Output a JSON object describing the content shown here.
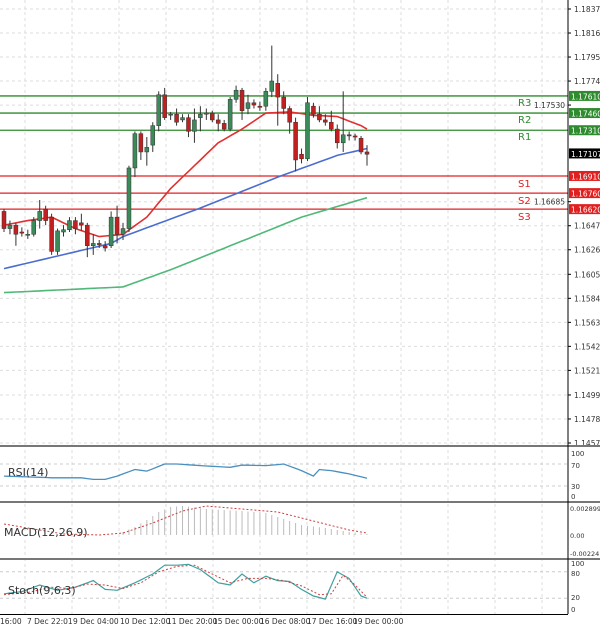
{
  "chart_data": {
    "type": "candlestick",
    "symbol_timeframe_hidden": true,
    "price_axis": {
      "ticks": [
        "1.18370",
        "1.18160",
        "1.17950",
        "1.17740",
        "1.17530",
        "1.16685",
        "1.16475",
        "1.16265",
        "1.16050",
        "1.15840",
        "1.15630",
        "1.15420",
        "1.15210",
        "1.14995",
        "1.14785",
        "1.14575"
      ],
      "range": [
        1.14575,
        1.1837
      ]
    },
    "current_price": {
      "value": "1.17107",
      "color": "#000000"
    },
    "levels": [
      {
        "name": "R3",
        "value": 1.1761,
        "label": "1.17610",
        "color": "#2e8b2e"
      },
      {
        "name": "R2",
        "value": 1.1746,
        "label": "1.17460",
        "color": "#2e8b2e"
      },
      {
        "name": "R1",
        "value": 1.1731,
        "label": "1.17310",
        "color": "#2e8b2e"
      },
      {
        "name": "S1",
        "value": 1.1691,
        "label": "1.16910",
        "color": "#e02020"
      },
      {
        "name": "S2",
        "value": 1.1676,
        "label": "1.16760",
        "color": "#e02020"
      },
      {
        "name": "S3",
        "value": 1.1662,
        "label": "1.16620",
        "color": "#e02020"
      }
    ],
    "time_axis": [
      "16:00",
      "7 Dec 22:01",
      "9 Dec 04:00",
      "10 Dec 12:00",
      "11 Dec 20:00",
      "15 Dec 00:00",
      "16 Dec 08:00",
      "17 Dec 16:00",
      "19 Dec 00:00"
    ],
    "colors": {
      "bull": "#3a8a5a",
      "bear": "#c02020",
      "ma_fast": "#e03030",
      "ma_mid": "#4a6ed0",
      "ma_slow": "#50b878"
    },
    "candles": [
      [
        1.166,
        1.1662,
        1.1642,
        1.1645
      ],
      [
        1.1645,
        1.1652,
        1.164,
        1.1648
      ],
      [
        1.1648,
        1.165,
        1.163,
        1.164
      ],
      [
        1.1642,
        1.1646,
        1.1638,
        1.1641
      ],
      [
        1.164,
        1.1644,
        1.1636,
        1.164
      ],
      [
        1.164,
        1.1655,
        1.1638,
        1.1652
      ],
      [
        1.1652,
        1.167,
        1.1645,
        1.166
      ],
      [
        1.1662,
        1.1665,
        1.1648,
        1.1652
      ],
      [
        1.1655,
        1.1658,
        1.1622,
        1.1625
      ],
      [
        1.1625,
        1.1645,
        1.1622,
        1.1643
      ],
      [
        1.1642,
        1.1648,
        1.1638,
        1.1644
      ],
      [
        1.1644,
        1.1655,
        1.1642,
        1.1652
      ],
      [
        1.1652,
        1.1655,
        1.164,
        1.1645
      ],
      [
        1.165,
        1.1658,
        1.1643,
        1.1648
      ],
      [
        1.1648,
        1.165,
        1.162,
        1.163
      ],
      [
        1.163,
        1.164,
        1.1622,
        1.1632
      ],
      [
        1.1632,
        1.1635,
        1.1628,
        1.1631
      ],
      [
        1.163,
        1.1634,
        1.1625,
        1.1628
      ],
      [
        1.163,
        1.166,
        1.1628,
        1.1655
      ],
      [
        1.1655,
        1.1665,
        1.1632,
        1.164
      ],
      [
        1.164,
        1.165,
        1.1635,
        1.1645
      ],
      [
        1.1645,
        1.17,
        1.1642,
        1.1698
      ],
      [
        1.1698,
        1.173,
        1.169,
        1.1728
      ],
      [
        1.1728,
        1.173,
        1.1705,
        1.1712
      ],
      [
        1.1712,
        1.1725,
        1.17,
        1.1716
      ],
      [
        1.1718,
        1.1738,
        1.1712,
        1.1735
      ],
      [
        1.1735,
        1.1765,
        1.173,
        1.1762
      ],
      [
        1.1762,
        1.1768,
        1.174,
        1.1742
      ],
      [
        1.1745,
        1.1747,
        1.174,
        1.1745
      ],
      [
        1.1745,
        1.175,
        1.1735,
        1.1738
      ],
      [
        1.174,
        1.1745,
        1.1738,
        1.1742
      ],
      [
        1.1742,
        1.1745,
        1.1725,
        1.173
      ],
      [
        1.173,
        1.175,
        1.172,
        1.174
      ],
      [
        1.1742,
        1.1752,
        1.173,
        1.1745
      ],
      [
        1.1745,
        1.175,
        1.174,
        1.1746
      ],
      [
        1.1746,
        1.1748,
        1.1738,
        1.174
      ],
      [
        1.174,
        1.1745,
        1.173,
        1.1737
      ],
      [
        1.1737,
        1.174,
        1.173,
        1.1732
      ],
      [
        1.1732,
        1.176,
        1.173,
        1.1758
      ],
      [
        1.1758,
        1.177,
        1.1755,
        1.1766
      ],
      [
        1.1766,
        1.1768,
        1.174,
        1.1748
      ],
      [
        1.175,
        1.1762,
        1.1745,
        1.1755
      ],
      [
        1.1755,
        1.1758,
        1.175,
        1.1753
      ],
      [
        1.1752,
        1.1756,
        1.1748,
        1.1751
      ],
      [
        1.1752,
        1.1768,
        1.1748,
        1.1765
      ],
      [
        1.1765,
        1.1805,
        1.176,
        1.1774
      ],
      [
        1.1772,
        1.178,
        1.1735,
        1.176
      ],
      [
        1.176,
        1.1765,
        1.1745,
        1.175
      ],
      [
        1.175,
        1.1752,
        1.1728,
        1.1738
      ],
      [
        1.1738,
        1.1742,
        1.1695,
        1.1705
      ],
      [
        1.171,
        1.1715,
        1.1702,
        1.1706
      ],
      [
        1.1706,
        1.176,
        1.1704,
        1.1755
      ],
      [
        1.1752,
        1.1755,
        1.1742,
        1.1745
      ],
      [
        1.1745,
        1.1752,
        1.1738,
        1.174
      ],
      [
        1.174,
        1.1745,
        1.1735,
        1.1738
      ],
      [
        1.1738,
        1.1748,
        1.173,
        1.1732
      ],
      [
        1.1732,
        1.1736,
        1.1715,
        1.172
      ],
      [
        1.172,
        1.1765,
        1.1712,
        1.1727
      ],
      [
        1.1727,
        1.173,
        1.1722,
        1.1726
      ],
      [
        1.1726,
        1.1728,
        1.1722,
        1.1725
      ],
      [
        1.1724,
        1.1726,
        1.171,
        1.1712
      ],
      [
        1.1712,
        1.1718,
        1.17,
        1.171
      ]
    ],
    "ma_fast": [
      [
        0,
        1.1648
      ],
      [
        4,
        1.1652
      ],
      [
        8,
        1.1655
      ],
      [
        12,
        1.1645
      ],
      [
        16,
        1.1638
      ],
      [
        20,
        1.164
      ],
      [
        24,
        1.1655
      ],
      [
        28,
        1.168
      ],
      [
        32,
        1.17
      ],
      [
        36,
        1.172
      ],
      [
        40,
        1.1732
      ],
      [
        44,
        1.1746
      ],
      [
        48,
        1.1747
      ],
      [
        52,
        1.1744
      ],
      [
        56,
        1.1743
      ],
      [
        60,
        1.1735
      ],
      [
        61,
        1.1732
      ]
    ],
    "ma_mid": [
      [
        0,
        1.161
      ],
      [
        18,
        1.1632
      ],
      [
        20,
        1.1638
      ],
      [
        33,
        1.1663
      ],
      [
        46,
        1.169
      ],
      [
        56,
        1.1709
      ],
      [
        61,
        1.1715
      ]
    ],
    "ma_slow": [
      [
        0,
        1.1589
      ],
      [
        20,
        1.1594
      ],
      [
        28,
        1.1609
      ],
      [
        39,
        1.1632
      ],
      [
        50,
        1.1655
      ],
      [
        61,
        1.1672
      ]
    ],
    "rsi": {
      "label": "RSI(14)",
      "ticks": [
        "100",
        "70",
        "30",
        "0"
      ],
      "values": [
        [
          0,
          48
        ],
        [
          8,
          45
        ],
        [
          13,
          45
        ],
        [
          15,
          42
        ],
        [
          17,
          42
        ],
        [
          19,
          48
        ],
        [
          22,
          60
        ],
        [
          24,
          57
        ],
        [
          27,
          70
        ],
        [
          29,
          70
        ],
        [
          33,
          67
        ],
        [
          38,
          64
        ],
        [
          40,
          68
        ],
        [
          44,
          67
        ],
        [
          47,
          70
        ],
        [
          50,
          58
        ],
        [
          52,
          48
        ],
        [
          53,
          60
        ],
        [
          55,
          58
        ],
        [
          58,
          52
        ],
        [
          61,
          44
        ]
      ],
      "color": "#4a8fc0"
    },
    "macd": {
      "label": "MACD(12,26,9)",
      "ticks": [
        "0.002899",
        "0.00",
        "-0.002241"
      ],
      "range": [
        -0.002241,
        0.002899
      ],
      "histogram": [
        [
          20,
          0.0003
        ],
        [
          22,
          0.0008
        ],
        [
          24,
          0.0015
        ],
        [
          26,
          0.0023
        ],
        [
          28,
          0.0028
        ],
        [
          30,
          0.0029
        ],
        [
          34,
          0.0026
        ],
        [
          40,
          0.0024
        ],
        [
          44,
          0.0022
        ],
        [
          46,
          0.0018
        ],
        [
          50,
          0.001
        ],
        [
          54,
          0.0007
        ],
        [
          58,
          0.0003
        ],
        [
          61,
          0.0001
        ]
      ],
      "signal": [
        [
          0,
          0.0011
        ],
        [
          5,
          0.0006
        ],
        [
          10,
          0.0001
        ],
        [
          16,
          0.0
        ],
        [
          20,
          0.0002
        ],
        [
          25,
          0.0012
        ],
        [
          30,
          0.0024
        ],
        [
          34,
          0.0029
        ],
        [
          40,
          0.0026
        ],
        [
          46,
          0.0023
        ],
        [
          52,
          0.0014
        ],
        [
          58,
          0.0005
        ],
        [
          61,
          0.0002
        ]
      ]
    },
    "stoch": {
      "label": "Stoch(9,6,3)",
      "ticks": [
        "100",
        "80",
        "20",
        "0"
      ],
      "main": [
        [
          0,
          30
        ],
        [
          3,
          35
        ],
        [
          6,
          50
        ],
        [
          9,
          38
        ],
        [
          12,
          45
        ],
        [
          15,
          60
        ],
        [
          17,
          40
        ],
        [
          19,
          38
        ],
        [
          22,
          55
        ],
        [
          25,
          75
        ],
        [
          27,
          95
        ],
        [
          29,
          95
        ],
        [
          31,
          97
        ],
        [
          33,
          85
        ],
        [
          36,
          55
        ],
        [
          38,
          50
        ],
        [
          40,
          75
        ],
        [
          42,
          55
        ],
        [
          44,
          70
        ],
        [
          46,
          60
        ],
        [
          48,
          58
        ],
        [
          50,
          40
        ],
        [
          52,
          25
        ],
        [
          54,
          18
        ],
        [
          56,
          80
        ],
        [
          58,
          65
        ],
        [
          60,
          25
        ],
        [
          61,
          20
        ]
      ],
      "signal": [
        [
          0,
          28
        ],
        [
          4,
          33
        ],
        [
          8,
          45
        ],
        [
          11,
          42
        ],
        [
          14,
          52
        ],
        [
          17,
          50
        ],
        [
          20,
          42
        ],
        [
          23,
          55
        ],
        [
          26,
          80
        ],
        [
          29,
          92
        ],
        [
          32,
          95
        ],
        [
          35,
          75
        ],
        [
          38,
          55
        ],
        [
          41,
          65
        ],
        [
          44,
          65
        ],
        [
          47,
          60
        ],
        [
          50,
          48
        ],
        [
          53,
          28
        ],
        [
          55,
          30
        ],
        [
          57,
          72
        ],
        [
          59,
          50
        ],
        [
          61,
          22
        ]
      ]
    }
  }
}
